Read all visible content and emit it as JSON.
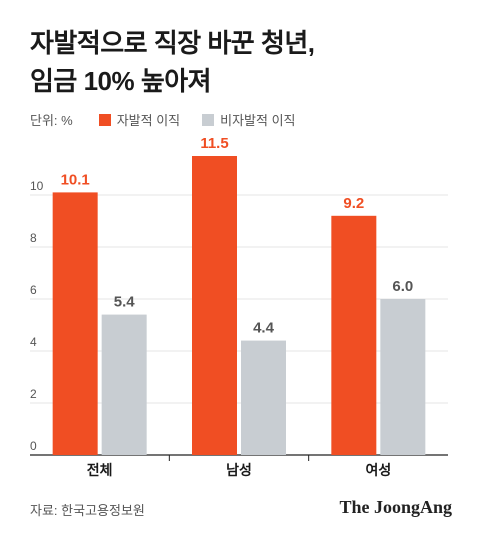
{
  "title_line1": "자발적으로 직장 바꾼 청년,",
  "title_line2": "임금 10% 높아져",
  "unit_label": "단위: %",
  "source": "자료: 한국고용정보원",
  "brand": "The JoongAng",
  "colors": {
    "voluntary": "#f04e23",
    "involuntary": "#c8cdd2",
    "voluntary_label": "#f04e23",
    "involuntary_label": "#555555"
  },
  "chart_data": {
    "type": "bar",
    "categories": [
      "전체",
      "남성",
      "여성"
    ],
    "series": [
      {
        "name": "자발적 이직",
        "values": [
          10.1,
          11.5,
          9.2
        ],
        "labels": [
          "10.1",
          "11.5",
          "9.2"
        ]
      },
      {
        "name": "비자발적 이직",
        "values": [
          5.4,
          4.4,
          6.0
        ],
        "labels": [
          "5.4",
          "4.4",
          "6.0"
        ]
      }
    ],
    "yticks": [
      0,
      2,
      4,
      6,
      8,
      10
    ],
    "ylim": [
      0,
      12
    ],
    "grid": true,
    "legend_position": "top-left"
  }
}
